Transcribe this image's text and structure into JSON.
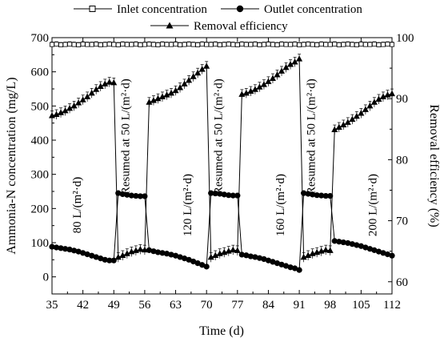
{
  "chart_data": {
    "type": "line",
    "xlabel": "Time (d)",
    "ylabel_left": "Ammonia-N concentration (mg/L)",
    "ylabel_right": "Removal efficiency (%)",
    "xlim": [
      35,
      112
    ],
    "ylim_left": [
      -50,
      700
    ],
    "ylim_right": [
      58,
      100
    ],
    "x_ticks": [
      35,
      42,
      49,
      56,
      63,
      70,
      77,
      84,
      91,
      98,
      105,
      112
    ],
    "y_left_ticks": [
      0,
      100,
      200,
      300,
      400,
      500,
      600,
      700
    ],
    "y_right_ticks": [
      60,
      70,
      80,
      90,
      100
    ],
    "legend": [
      {
        "name": "Inlet concentration",
        "marker": "open-square"
      },
      {
        "name": "Outlet concentration",
        "marker": "filled-circle"
      },
      {
        "name": "Removal efficiency",
        "marker": "filled-triangle"
      }
    ],
    "legend_placement": "top",
    "grid": false,
    "phase_labels": [
      {
        "text": "80 L/(m²·d)",
        "x": 41.5,
        "y": 210
      },
      {
        "text": "Resumed at 50 L/(m²·d)",
        "x": 52.5,
        "y": 410
      },
      {
        "text": "120 L/(m²·d)",
        "x": 66.5,
        "y": 210
      },
      {
        "text": "Resumed at 50 L/(m²·d)",
        "x": 73.5,
        "y": 410
      },
      {
        "text": "160 L/(m²·d)",
        "x": 87.5,
        "y": 210
      },
      {
        "text": "Resumed at 50 L/(m²·d)",
        "x": 94.5,
        "y": 410
      },
      {
        "text": "200 L/(m²·d)",
        "x": 108.5,
        "y": 210
      }
    ],
    "inlet": {
      "axis": "left",
      "x": [
        35,
        36,
        37,
        38,
        39,
        40,
        41,
        42,
        43,
        44,
        45,
        46,
        47,
        48,
        49,
        50,
        51,
        52,
        53,
        54,
        55,
        56,
        57,
        58,
        59,
        60,
        61,
        62,
        63,
        64,
        65,
        66,
        67,
        68,
        69,
        70,
        71,
        72,
        73,
        74,
        75,
        76,
        77,
        78,
        79,
        80,
        81,
        82,
        83,
        84,
        85,
        86,
        87,
        88,
        89,
        90,
        91,
        92,
        93,
        94,
        95,
        96,
        97,
        98,
        99,
        100,
        101,
        102,
        103,
        104,
        105,
        106,
        107,
        108,
        109,
        110,
        111,
        112
      ],
      "y": [
        680,
        681,
        679,
        680,
        681,
        680,
        679,
        681,
        680,
        680,
        681,
        679,
        680,
        681,
        680,
        679,
        681,
        680,
        680,
        681,
        679,
        680,
        681,
        680,
        679,
        681,
        680,
        680,
        681,
        679,
        680,
        681,
        680,
        679,
        681,
        680,
        680,
        681,
        679,
        680,
        681,
        680,
        679,
        681,
        680,
        680,
        681,
        679,
        680,
        681,
        680,
        679,
        681,
        680,
        680,
        681,
        679,
        680,
        681,
        680,
        679,
        681,
        680,
        680,
        681,
        679,
        680,
        681,
        680,
        679,
        681,
        680,
        680,
        681,
        679,
        680,
        681,
        680
      ]
    },
    "outlet": {
      "axis": "left",
      "x": [
        35,
        36,
        37,
        38,
        39,
        40,
        41,
        42,
        43,
        44,
        45,
        46,
        47,
        48,
        49,
        50,
        51,
        52,
        53,
        54,
        55,
        56,
        57,
        58,
        59,
        60,
        61,
        62,
        63,
        64,
        65,
        66,
        67,
        68,
        69,
        70,
        71,
        72,
        73,
        74,
        75,
        76,
        77,
        78,
        79,
        80,
        81,
        82,
        83,
        84,
        85,
        86,
        87,
        88,
        89,
        90,
        91,
        92,
        93,
        94,
        95,
        96,
        97,
        98,
        99,
        100,
        101,
        102,
        103,
        104,
        105,
        106,
        107,
        108,
        109,
        110,
        111,
        112
      ],
      "y": [
        88,
        86,
        84,
        82,
        80,
        77,
        74,
        70,
        66,
        62,
        58,
        54,
        50,
        48,
        48,
        245,
        242,
        240,
        238,
        237,
        236,
        236,
        78,
        75,
        72,
        70,
        68,
        65,
        62,
        58,
        54,
        50,
        45,
        40,
        35,
        30,
        245,
        244,
        243,
        241,
        239,
        238,
        238,
        65,
        63,
        60,
        58,
        55,
        52,
        48,
        44,
        40,
        36,
        32,
        28,
        25,
        20,
        245,
        243,
        241,
        239,
        238,
        237,
        237,
        105,
        103,
        101,
        99,
        96,
        93,
        90,
        86,
        82,
        78,
        74,
        70,
        66,
        62
      ]
    },
    "efficiency": {
      "axis": "right",
      "x": [
        35,
        36,
        37,
        38,
        39,
        40,
        41,
        42,
        43,
        44,
        45,
        46,
        47,
        48,
        49,
        50,
        51,
        52,
        53,
        54,
        55,
        56,
        57,
        58,
        59,
        60,
        61,
        62,
        63,
        64,
        65,
        66,
        67,
        68,
        69,
        70,
        71,
        72,
        73,
        74,
        75,
        76,
        77,
        78,
        79,
        80,
        81,
        82,
        83,
        84,
        85,
        86,
        87,
        88,
        89,
        90,
        91,
        92,
        93,
        94,
        95,
        96,
        97,
        98,
        99,
        100,
        101,
        102,
        103,
        104,
        105,
        106,
        107,
        108,
        109,
        110,
        111,
        112
      ],
      "y": [
        87.2,
        87.4,
        87.7,
        88.0,
        88.4,
        88.8,
        89.3,
        89.8,
        90.3,
        90.9,
        91.5,
        92.0,
        92.4,
        92.7,
        92.6,
        64.0,
        64.3,
        64.6,
        64.9,
        65.1,
        65.3,
        65.2,
        89.4,
        89.7,
        90.0,
        90.3,
        90.6,
        90.9,
        91.3,
        91.8,
        92.4,
        93.0,
        93.6,
        94.2,
        94.8,
        95.3,
        64.0,
        64.3,
        64.6,
        64.8,
        65.0,
        65.2,
        65.1,
        90.7,
        90.9,
        91.2,
        91.5,
        91.9,
        92.3,
        92.8,
        93.3,
        93.9,
        94.5,
        95.1,
        95.6,
        96.0,
        96.5,
        64.0,
        64.3,
        64.6,
        64.8,
        65.0,
        65.2,
        65.1,
        84.9,
        85.3,
        85.7,
        86.1,
        86.6,
        87.1,
        87.6,
        88.2,
        88.8,
        89.4,
        89.9,
        90.3,
        90.6,
        90.8
      ]
    }
  }
}
